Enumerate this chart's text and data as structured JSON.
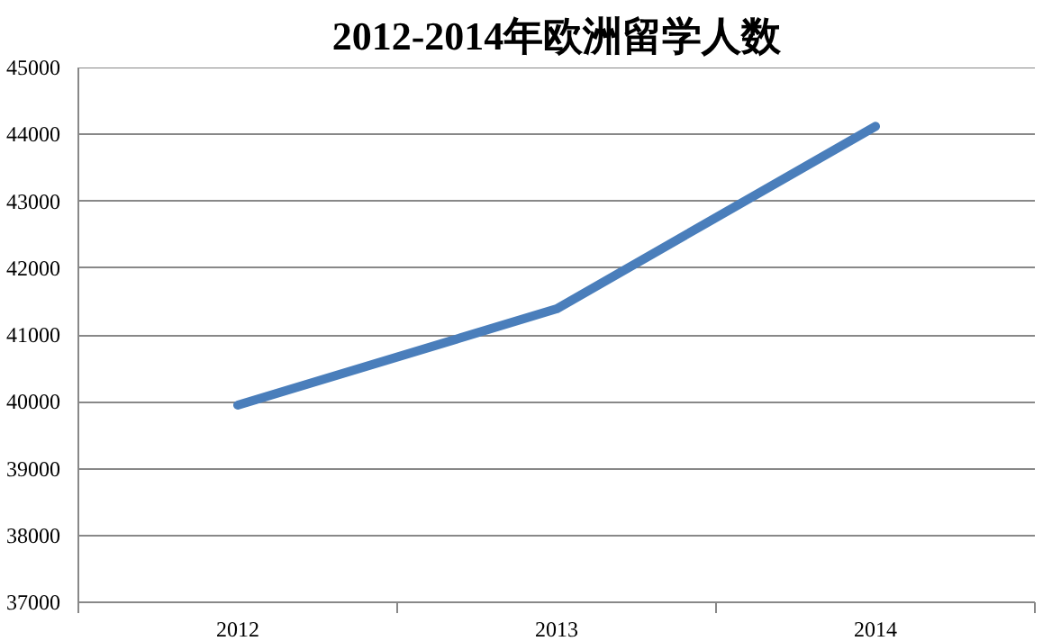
{
  "chart_data": {
    "type": "line",
    "title": "2012-2014年欧洲留学人数",
    "categories": [
      "2012",
      "2013",
      "2014"
    ],
    "series": [
      {
        "color": "#4a7ebb",
        "values": [
          39950,
          41390,
          44120
        ]
      }
    ],
    "ylim": [
      37000,
      45000
    ],
    "yticks": [
      37000,
      38000,
      39000,
      40000,
      41000,
      42000,
      43000,
      44000,
      45000
    ],
    "grid": "y",
    "marker": "none",
    "line_style": "solid"
  }
}
